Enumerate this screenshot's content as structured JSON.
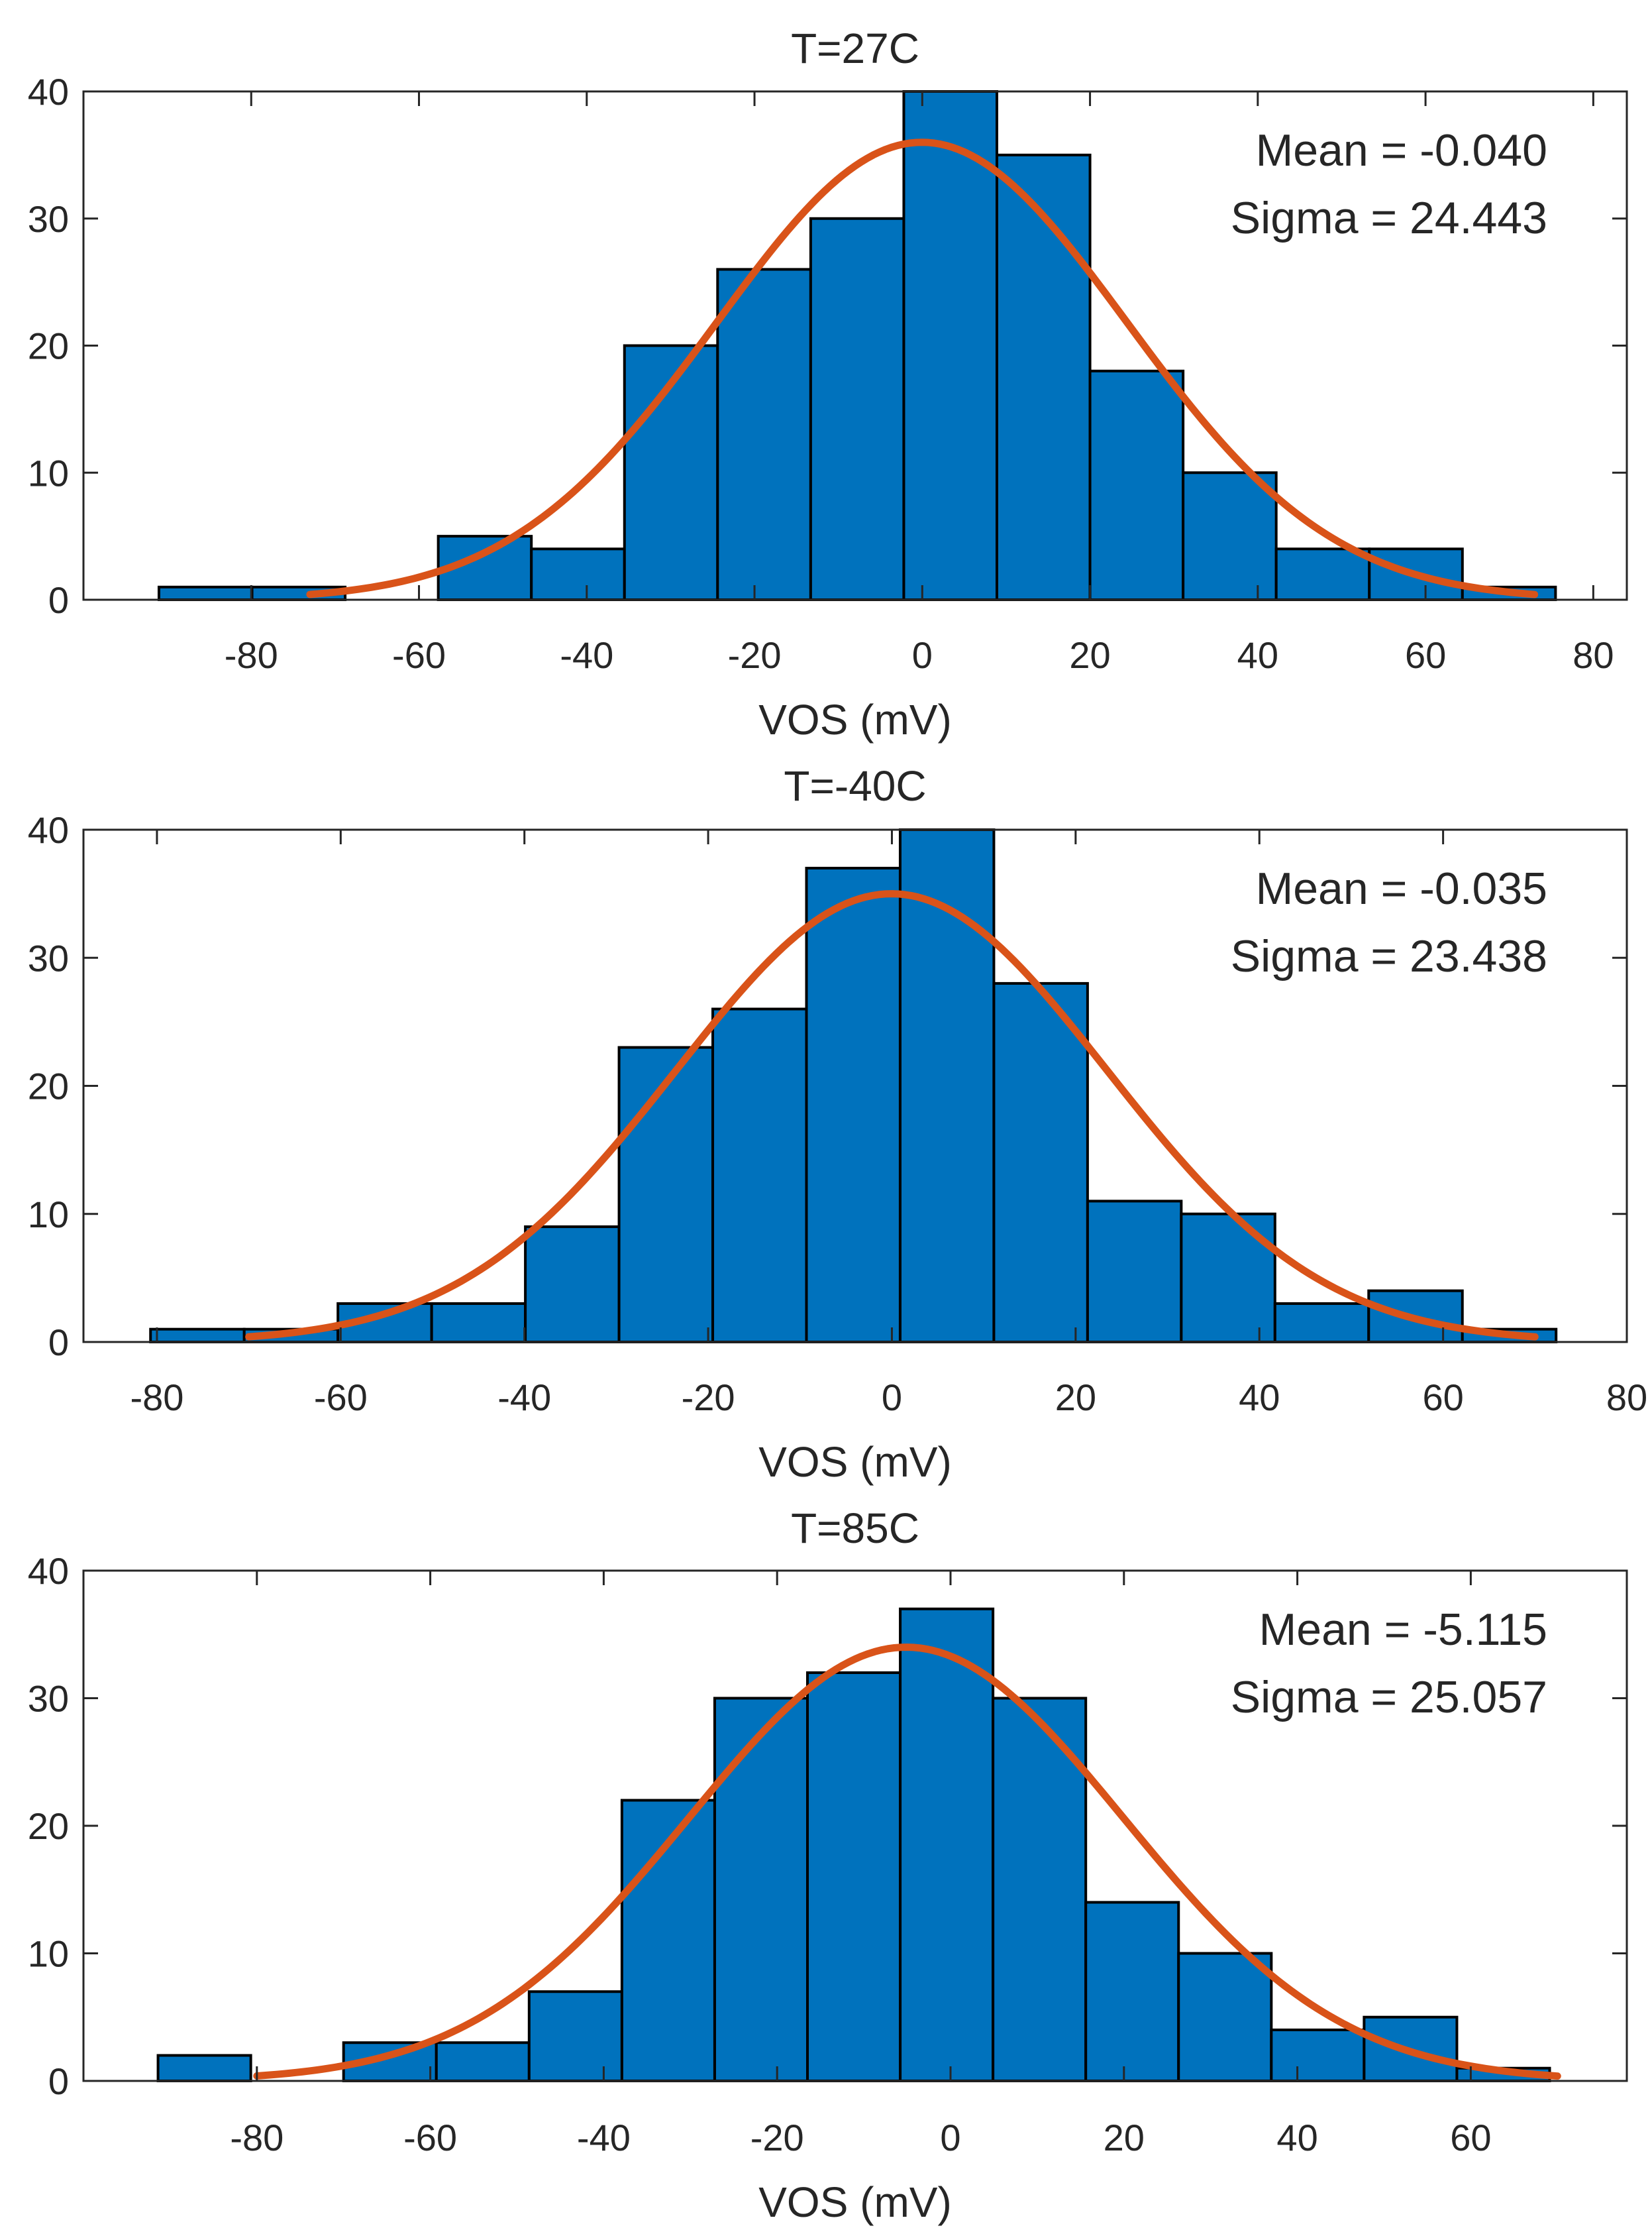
{
  "colors": {
    "bar_fill": "#0072bd",
    "bar_edge": "#000000",
    "fit_line": "#d95319",
    "axis": "#262626"
  },
  "chart_data": [
    {
      "type": "bar",
      "subtype": "histogram-with-normal-fit",
      "title": "T=27C",
      "xlabel": "VOS (mV)",
      "ylabel": "",
      "xlim": [
        -100,
        84
      ],
      "ylim": [
        0,
        40
      ],
      "xticks": [
        -80,
        -60,
        -40,
        -20,
        0,
        20,
        40,
        60,
        80
      ],
      "yticks": [
        0,
        10,
        20,
        30,
        40
      ],
      "bin_edges": [
        -91,
        -79.9,
        -68.8,
        -57.7,
        -46.6,
        -35.5,
        -24.4,
        -13.3,
        -2.2,
        8.9,
        20,
        31.1,
        42.2,
        53.3,
        64.4,
        75.5
      ],
      "counts": [
        1,
        1,
        0,
        5,
        4,
        20,
        26,
        30,
        42,
        35,
        18,
        10,
        4,
        4,
        1
      ],
      "fit": {
        "mean": -0.04,
        "sigma": 24.443,
        "peak": 36,
        "range": [
          -73,
          73
        ]
      },
      "annotations": [
        "Mean = -0.040",
        "Sigma = 24.443"
      ]
    },
    {
      "type": "bar",
      "subtype": "histogram-with-normal-fit",
      "title": "T=-40C",
      "xlabel": "VOS (mV)",
      "ylabel": "",
      "xlim": [
        -88,
        80
      ],
      "ylim": [
        0,
        40
      ],
      "xticks": [
        -80,
        -60,
        -40,
        -20,
        0,
        20,
        40,
        60,
        80
      ],
      "yticks": [
        0,
        10,
        20,
        30,
        40
      ],
      "bin_edges": [
        -80.7,
        -70.5,
        -60.3,
        -50.1,
        -39.9,
        -29.7,
        -19.5,
        -9.3,
        0.9,
        11.1,
        21.3,
        31.5,
        41.7,
        51.9,
        62.1,
        72.3
      ],
      "counts": [
        1,
        1,
        3,
        3,
        9,
        23,
        26,
        37,
        42,
        28,
        11,
        10,
        3,
        4,
        1
      ],
      "fit": {
        "mean": -0.035,
        "sigma": 23.438,
        "peak": 35,
        "range": [
          -70,
          70
        ]
      },
      "annotations": [
        "Mean = -0.035",
        "Sigma = 23.438"
      ]
    },
    {
      "type": "bar",
      "subtype": "histogram-with-normal-fit",
      "title": "T=85C",
      "xlabel": "VOS (mV)",
      "ylabel": "",
      "xlim": [
        -100,
        78
      ],
      "ylim": [
        0,
        40
      ],
      "xticks": [
        -80,
        -60,
        -40,
        -20,
        0,
        20,
        40,
        60
      ],
      "yticks": [
        0,
        10,
        20,
        30,
        40
      ],
      "bin_edges": [
        -91.4,
        -80.7,
        -70,
        -59.3,
        -48.6,
        -37.9,
        -27.2,
        -16.5,
        -5.8,
        4.9,
        15.6,
        26.3,
        37,
        47.7,
        58.4,
        69.1
      ],
      "counts": [
        2,
        0,
        3,
        3,
        7,
        22,
        30,
        32,
        37,
        30,
        14,
        10,
        4,
        5,
        1
      ],
      "fit": {
        "mean": -5.115,
        "sigma": 25.057,
        "peak": 34,
        "range": [
          -80,
          70
        ]
      },
      "annotations": [
        "Mean = -5.115",
        "Sigma = 25.057"
      ]
    }
  ]
}
